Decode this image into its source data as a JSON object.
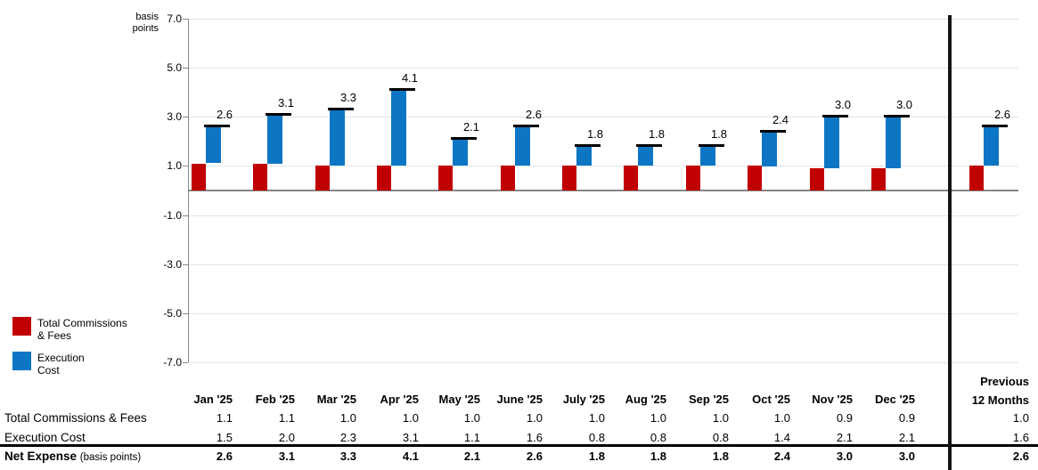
{
  "chart": {
    "y_axis_title_lines": [
      "basis",
      "points"
    ],
    "y_ticks": [
      "7.0",
      "5.0",
      "3.0",
      "1.0",
      "-1.0",
      "-3.0",
      "-5.0",
      "-7.0"
    ],
    "legend": [
      {
        "name": "total-commissions-fees",
        "color": "#c00000",
        "label_lines": [
          "Total Commissions",
          "& Fees"
        ]
      },
      {
        "name": "execution-cost",
        "color": "#0d76c4",
        "label_lines": [
          "Execution",
          "Cost"
        ]
      }
    ]
  },
  "chart_data": {
    "type": "bar",
    "subtype": "stacked-with-total-markers",
    "title": "",
    "ylabel": "basis points",
    "ylim": [
      -7.0,
      7.0
    ],
    "y_tick_step": 2.0,
    "grid": true,
    "legend_position": "left-middle",
    "categories": [
      "Jan '25",
      "Feb '25",
      "Mar '25",
      "Apr '25",
      "May '25",
      "June '25",
      "July '25",
      "Aug '25",
      "Sep '25",
      "Oct '25",
      "Nov '25",
      "Dec '25",
      "Previous 12 Months"
    ],
    "series": [
      {
        "name": "Total Commissions & Fees",
        "color": "#c00000",
        "values": [
          1.1,
          1.1,
          1.0,
          1.0,
          1.0,
          1.0,
          1.0,
          1.0,
          1.0,
          1.0,
          0.9,
          0.9,
          1.0
        ]
      },
      {
        "name": "Execution Cost",
        "color": "#0d76c4",
        "values": [
          1.5,
          2.0,
          2.3,
          3.1,
          1.1,
          1.6,
          0.8,
          0.8,
          0.8,
          1.4,
          2.1,
          2.1,
          1.6
        ]
      }
    ],
    "totals": {
      "name": "Net Expense (basis points)",
      "marker_color": "#000000",
      "values": [
        2.6,
        3.1,
        3.3,
        4.1,
        2.1,
        2.6,
        1.8,
        1.8,
        1.8,
        2.4,
        3.0,
        3.0,
        2.6
      ],
      "labels": [
        "2.6",
        "3.1",
        "3.3",
        "4.1",
        "2.1",
        "2.6",
        "1.8",
        "1.8",
        "1.8",
        "2.4",
        "3.0",
        "3.0",
        "2.6"
      ]
    }
  },
  "table": {
    "col_headers": [
      "Jan '25",
      "Feb '25",
      "Mar '25",
      "Apr '25",
      "May '25",
      "June '25",
      "July '25",
      "Aug '25",
      "Sep '25",
      "Oct '25",
      "Nov '25",
      "Dec '25"
    ],
    "last_col_header_lines": [
      "Previous",
      "12 Months"
    ],
    "rows": [
      {
        "label": "Total Commissions & Fees",
        "bold": false,
        "values": [
          "1.1",
          "1.1",
          "1.0",
          "1.0",
          "1.0",
          "1.0",
          "1.0",
          "1.0",
          "1.0",
          "1.0",
          "0.9",
          "0.9"
        ],
        "previous": "1.0"
      },
      {
        "label": "Execution Cost",
        "bold": false,
        "values": [
          "1.5",
          "2.0",
          "2.3",
          "3.1",
          "1.1",
          "1.6",
          "0.8",
          "0.8",
          "0.8",
          "1.4",
          "2.1",
          "2.1"
        ],
        "previous": "1.6"
      },
      {
        "label": "Net Expense",
        "label_suffix": "(basis points)",
        "bold": true,
        "values": [
          "2.6",
          "3.1",
          "3.3",
          "4.1",
          "2.1",
          "2.6",
          "1.8",
          "1.8",
          "1.8",
          "2.4",
          "3.0",
          "3.0"
        ],
        "previous": "2.6"
      }
    ]
  }
}
